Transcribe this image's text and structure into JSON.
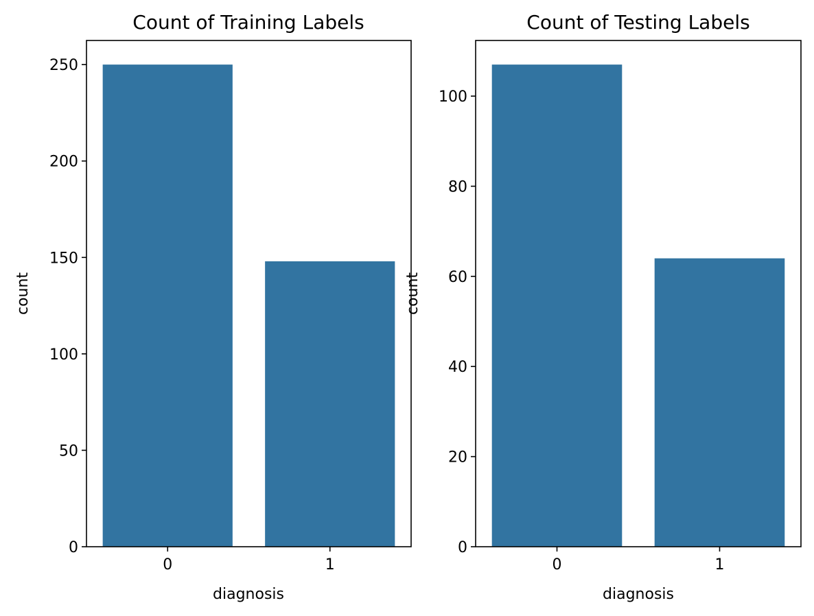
{
  "chart_data": [
    {
      "type": "bar",
      "title": "Count of Training Labels",
      "xlabel": "diagnosis",
      "ylabel": "count",
      "categories": [
        "0",
        "1"
      ],
      "values": [
        250,
        148
      ],
      "yticks": [
        0,
        50,
        100,
        150,
        200,
        250
      ],
      "ylim": [
        0,
        262.5
      ],
      "bar_color": "#3274a1",
      "grid": false,
      "legend": "none"
    },
    {
      "type": "bar",
      "title": "Count of Testing Labels",
      "xlabel": "diagnosis",
      "ylabel": "count",
      "categories": [
        "0",
        "1"
      ],
      "values": [
        107,
        64
      ],
      "yticks": [
        0,
        20,
        40,
        60,
        80,
        100
      ],
      "ylim": [
        0,
        112.35
      ],
      "bar_color": "#3274a1",
      "grid": false,
      "legend": "none"
    }
  ]
}
